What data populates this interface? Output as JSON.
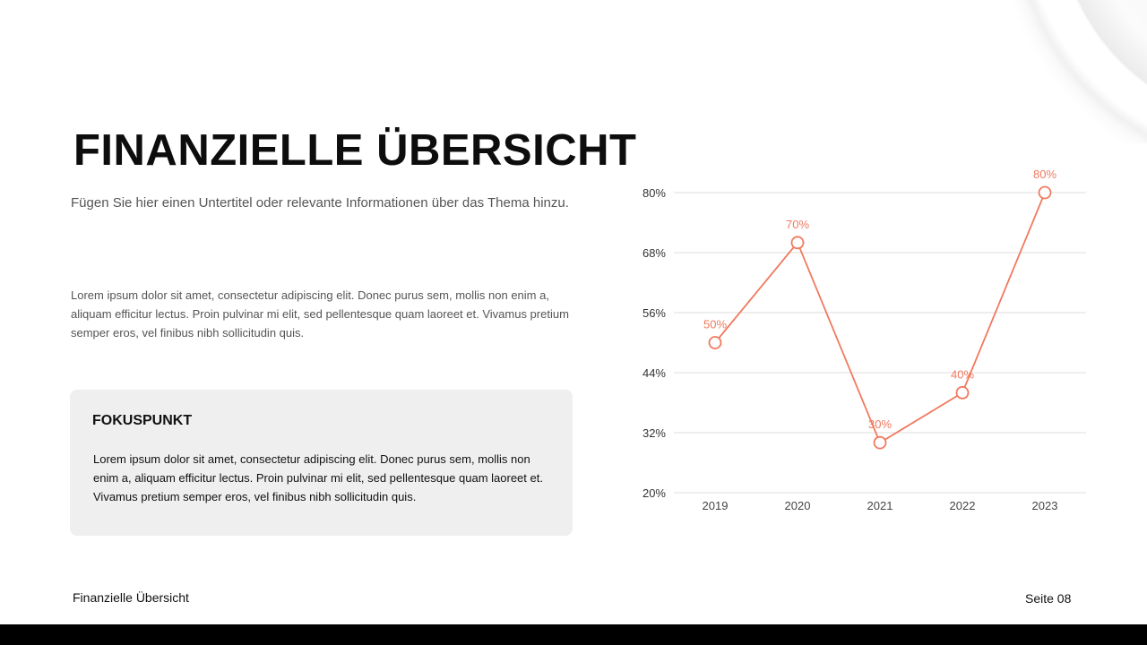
{
  "slide": {
    "title": "FINANZIELLE ÜBERSICHT",
    "subtitle": "Fügen Sie hier einen Untertitel oder relevante Informationen über das Thema hinzu.",
    "body": "Lorem ipsum dolor sit amet, consectetur adipiscing elit. Donec purus sem, mollis non enim a, aliquam efficitur lectus. Proin pulvinar mi elit, sed pellentesque quam laoreet et. Vivamus pretium semper eros, vel finibus nibh sollicitudin quis.",
    "focus": {
      "heading": "FOKUSPUNKT",
      "text": "Lorem ipsum dolor sit amet, consectetur adipiscing elit. Donec purus sem, mollis non enim a, aliquam efficitur lectus. Proin pulvinar mi elit, sed pellentesque quam laoreet et. Vivamus pretium semper eros, vel finibus nibh sollicitudin quis."
    },
    "footer_left": "Finanzielle Übersicht",
    "footer_right": "Seite 08"
  },
  "chart_data": {
    "type": "line",
    "categories": [
      "2019",
      "2020",
      "2021",
      "2022",
      "2023"
    ],
    "values": [
      50,
      70,
      30,
      40,
      80
    ],
    "data_labels": [
      "50%",
      "70%",
      "30%",
      "40%",
      "80%"
    ],
    "yticks": [
      "20%",
      "32%",
      "44%",
      "56%",
      "68%",
      "80%"
    ],
    "ytick_values": [
      20,
      32,
      44,
      56,
      68,
      80
    ],
    "ylim": [
      20,
      80
    ],
    "grid": true,
    "line_color": "#f07a5f",
    "label_color": "#f07a5f"
  }
}
